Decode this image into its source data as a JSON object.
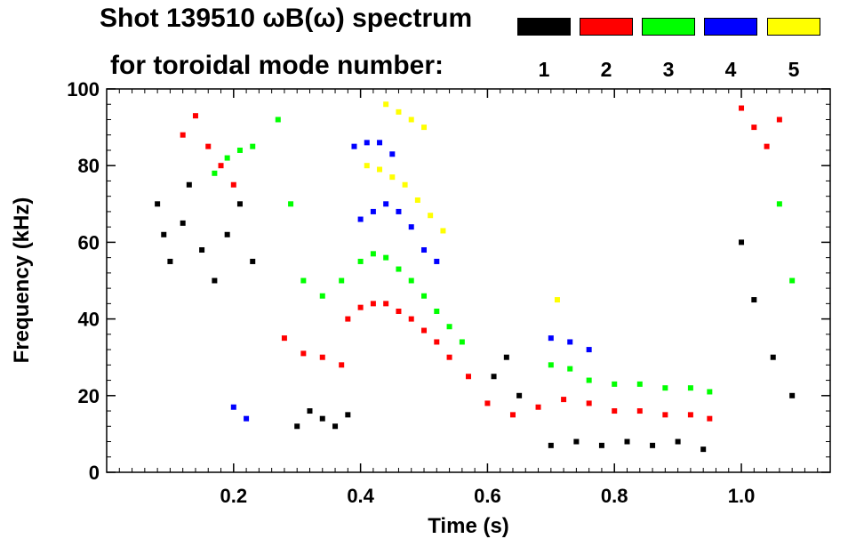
{
  "header": {
    "title": "Shot 139510 ωB(ω) spectrum",
    "subtitle": "for toroidal mode number:"
  },
  "legend": [
    {
      "n": "1",
      "color": "#000000"
    },
    {
      "n": "2",
      "color": "#ff0000"
    },
    {
      "n": "3",
      "color": "#00ff00"
    },
    {
      "n": "4",
      "color": "#0000ff"
    },
    {
      "n": "5",
      "color": "#ffff00"
    }
  ],
  "chart_data": {
    "type": "scatter",
    "title": "Shot 139510 ωB(ω) spectrum",
    "xlabel": "Time (s)",
    "ylabel": "Frequency (kHz)",
    "xlim": [
      0.0,
      1.14
    ],
    "ylim": [
      0,
      100
    ],
    "xticks": [
      0.2,
      0.4,
      0.6,
      0.8,
      1.0
    ],
    "xtick_labels": [
      "0.2",
      "0.4",
      "0.6",
      "0.8",
      "1.0"
    ],
    "yticks": [
      0,
      20,
      40,
      60,
      80,
      100
    ],
    "ytick_labels": [
      "0",
      "20",
      "40",
      "60",
      "80",
      "100"
    ],
    "grid": false,
    "series": [
      {
        "name": "n=1",
        "color": "#000000",
        "points": [
          [
            0.08,
            70
          ],
          [
            0.09,
            62
          ],
          [
            0.1,
            55
          ],
          [
            0.12,
            65
          ],
          [
            0.13,
            75
          ],
          [
            0.15,
            58
          ],
          [
            0.17,
            50
          ],
          [
            0.19,
            62
          ],
          [
            0.21,
            70
          ],
          [
            0.23,
            55
          ],
          [
            0.3,
            12
          ],
          [
            0.32,
            16
          ],
          [
            0.34,
            14
          ],
          [
            0.36,
            12
          ],
          [
            0.38,
            15
          ],
          [
            0.61,
            25
          ],
          [
            0.63,
            30
          ],
          [
            0.65,
            20
          ],
          [
            0.7,
            7
          ],
          [
            0.74,
            8
          ],
          [
            0.78,
            7
          ],
          [
            0.82,
            8
          ],
          [
            0.86,
            7
          ],
          [
            0.9,
            8
          ],
          [
            0.94,
            6
          ],
          [
            1.0,
            60
          ],
          [
            1.02,
            45
          ],
          [
            1.05,
            30
          ],
          [
            1.08,
            20
          ]
        ]
      },
      {
        "name": "n=2",
        "color": "#ff0000",
        "points": [
          [
            0.12,
            88
          ],
          [
            0.14,
            93
          ],
          [
            0.16,
            85
          ],
          [
            0.18,
            80
          ],
          [
            0.2,
            75
          ],
          [
            0.28,
            35
          ],
          [
            0.31,
            31
          ],
          [
            0.34,
            30
          ],
          [
            0.37,
            28
          ],
          [
            0.38,
            40
          ],
          [
            0.4,
            43
          ],
          [
            0.42,
            44
          ],
          [
            0.44,
            44
          ],
          [
            0.46,
            42
          ],
          [
            0.48,
            40
          ],
          [
            0.5,
            37
          ],
          [
            0.52,
            34
          ],
          [
            0.54,
            30
          ],
          [
            0.57,
            25
          ],
          [
            0.6,
            18
          ],
          [
            0.64,
            15
          ],
          [
            0.68,
            17
          ],
          [
            0.72,
            19
          ],
          [
            0.76,
            18
          ],
          [
            0.8,
            16
          ],
          [
            0.84,
            16
          ],
          [
            0.88,
            15
          ],
          [
            0.92,
            15
          ],
          [
            0.95,
            14
          ],
          [
            1.0,
            95
          ],
          [
            1.02,
            90
          ],
          [
            1.04,
            85
          ],
          [
            1.06,
            92
          ]
        ]
      },
      {
        "name": "n=3",
        "color": "#00ff00",
        "points": [
          [
            0.17,
            78
          ],
          [
            0.19,
            82
          ],
          [
            0.21,
            84
          ],
          [
            0.23,
            85
          ],
          [
            0.27,
            92
          ],
          [
            0.29,
            70
          ],
          [
            0.31,
            50
          ],
          [
            0.34,
            46
          ],
          [
            0.37,
            50
          ],
          [
            0.4,
            55
          ],
          [
            0.42,
            57
          ],
          [
            0.44,
            56
          ],
          [
            0.46,
            53
          ],
          [
            0.48,
            50
          ],
          [
            0.5,
            46
          ],
          [
            0.52,
            42
          ],
          [
            0.54,
            38
          ],
          [
            0.56,
            34
          ],
          [
            0.7,
            28
          ],
          [
            0.73,
            27
          ],
          [
            0.76,
            24
          ],
          [
            0.8,
            23
          ],
          [
            0.84,
            23
          ],
          [
            0.88,
            22
          ],
          [
            0.92,
            22
          ],
          [
            0.95,
            21
          ],
          [
            1.06,
            70
          ],
          [
            1.08,
            50
          ]
        ]
      },
      {
        "name": "n=4",
        "color": "#0000ff",
        "points": [
          [
            0.4,
            66
          ],
          [
            0.42,
            68
          ],
          [
            0.44,
            70
          ],
          [
            0.46,
            68
          ],
          [
            0.48,
            64
          ],
          [
            0.5,
            58
          ],
          [
            0.52,
            55
          ],
          [
            0.39,
            85
          ],
          [
            0.41,
            86
          ],
          [
            0.43,
            86
          ],
          [
            0.45,
            83
          ],
          [
            0.7,
            35
          ],
          [
            0.73,
            34
          ],
          [
            0.76,
            32
          ],
          [
            0.2,
            17
          ],
          [
            0.22,
            14
          ]
        ]
      },
      {
        "name": "n=5",
        "color": "#ffff00",
        "points": [
          [
            0.41,
            80
          ],
          [
            0.43,
            79
          ],
          [
            0.45,
            77
          ],
          [
            0.47,
            75
          ],
          [
            0.49,
            71
          ],
          [
            0.51,
            67
          ],
          [
            0.53,
            63
          ],
          [
            0.44,
            96
          ],
          [
            0.46,
            94
          ],
          [
            0.48,
            92
          ],
          [
            0.5,
            90
          ],
          [
            0.71,
            45
          ]
        ]
      }
    ]
  }
}
